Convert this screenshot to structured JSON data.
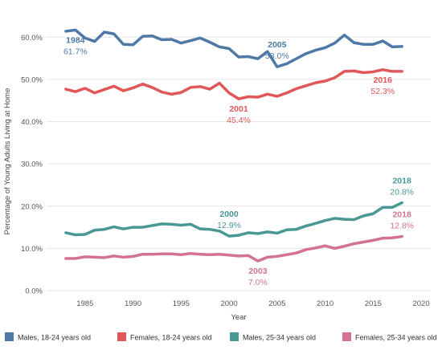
{
  "chart_data": {
    "type": "line",
    "xlabel": "Year",
    "ylabel": "Percentage of Young Adults Living at Home",
    "xlim": [
      1981,
      2021
    ],
    "ylim": [
      0,
      65
    ],
    "x_ticks": [
      1985,
      1990,
      1995,
      2000,
      2005,
      2010,
      2015,
      2020
    ],
    "y_ticks": [
      0,
      10,
      20,
      30,
      40,
      50,
      60
    ],
    "y_tick_labels": [
      "0.0%",
      "10.0%",
      "20.0%",
      "30.0%",
      "40.0%",
      "50.0%",
      "60.0%"
    ],
    "grid": "horizontal",
    "legend_position": "bottom",
    "x": [
      1983,
      1984,
      1985,
      1986,
      1987,
      1988,
      1989,
      1990,
      1991,
      1992,
      1993,
      1994,
      1995,
      1996,
      1997,
      1998,
      1999,
      2000,
      2001,
      2002,
      2003,
      2004,
      2005,
      2006,
      2007,
      2008,
      2009,
      2010,
      2011,
      2012,
      2013,
      2014,
      2015,
      2016,
      2017,
      2018
    ],
    "series": [
      {
        "name": "Males, 18-24 years old",
        "color": "#4e79a7",
        "values": [
          61.4,
          61.7,
          59.8,
          59.0,
          61.2,
          60.8,
          58.3,
          58.2,
          60.2,
          60.3,
          59.4,
          59.5,
          58.6,
          59.2,
          59.8,
          58.8,
          57.7,
          57.3,
          55.3,
          55.4,
          54.9,
          56.6,
          53.0,
          53.7,
          54.9,
          56.1,
          56.9,
          57.5,
          58.6,
          60.5,
          58.7,
          58.3,
          58.3,
          59.1,
          57.7,
          57.8
        ]
      },
      {
        "name": "Females, 18-24 years old",
        "color": "#e15759",
        "values": [
          47.7,
          47.1,
          47.9,
          46.8,
          47.6,
          48.4,
          47.3,
          48.0,
          48.9,
          48.1,
          47.0,
          46.5,
          46.9,
          48.1,
          48.3,
          47.7,
          49.1,
          46.8,
          45.4,
          45.9,
          45.8,
          46.5,
          46.0,
          46.8,
          47.8,
          48.5,
          49.2,
          49.6,
          50.4,
          51.9,
          52.0,
          51.6,
          51.8,
          52.3,
          51.9,
          51.9
        ]
      },
      {
        "name": "Males, 25-34 years old",
        "color": "#499894",
        "values": [
          13.7,
          13.2,
          13.3,
          14.3,
          14.5,
          15.1,
          14.6,
          15.0,
          15.0,
          15.4,
          15.8,
          15.7,
          15.5,
          15.7,
          14.6,
          14.5,
          14.1,
          12.9,
          13.1,
          13.7,
          13.5,
          13.9,
          13.6,
          14.4,
          14.5,
          15.3,
          15.9,
          16.6,
          17.1,
          16.9,
          16.8,
          17.7,
          18.2,
          19.7,
          19.7,
          20.8
        ]
      },
      {
        "name": "Females, 25-34 years old",
        "color": "#d37295",
        "values": [
          7.6,
          7.6,
          8.0,
          7.9,
          7.8,
          8.2,
          7.9,
          8.1,
          8.6,
          8.6,
          8.7,
          8.7,
          8.5,
          8.8,
          8.6,
          8.5,
          8.6,
          8.4,
          8.2,
          8.3,
          7.0,
          7.9,
          8.1,
          8.5,
          8.9,
          9.7,
          10.1,
          10.6,
          10.0,
          10.5,
          11.1,
          11.5,
          11.9,
          12.4,
          12.5,
          12.8
        ]
      }
    ],
    "annotations": [
      {
        "series": 0,
        "x": 1984,
        "y": 61.7,
        "year_label": "1984",
        "value_label": "61.7%",
        "placement": "below"
      },
      {
        "series": 0,
        "x": 2005,
        "y": 53.0,
        "year_label": "2005",
        "value_label": "53.0%",
        "placement": "above"
      },
      {
        "series": 1,
        "x": 2001,
        "y": 45.4,
        "year_label": "2001",
        "value_label": "45.4%",
        "placement": "below"
      },
      {
        "series": 1,
        "x": 2016,
        "y": 52.3,
        "year_label": "2016",
        "value_label": "52.3%",
        "placement": "below"
      },
      {
        "series": 2,
        "x": 2000,
        "y": 12.9,
        "year_label": "2000",
        "value_label": "12.9%",
        "placement": "above"
      },
      {
        "series": 2,
        "x": 2018,
        "y": 20.8,
        "year_label": "2018",
        "value_label": "20.8%",
        "placement": "above"
      },
      {
        "series": 3,
        "x": 2003,
        "y": 7.0,
        "year_label": "2003",
        "value_label": "7.0%",
        "placement": "below"
      },
      {
        "series": 3,
        "x": 2018,
        "y": 12.8,
        "year_label": "2018",
        "value_label": "12.8%",
        "placement": "above"
      }
    ]
  }
}
